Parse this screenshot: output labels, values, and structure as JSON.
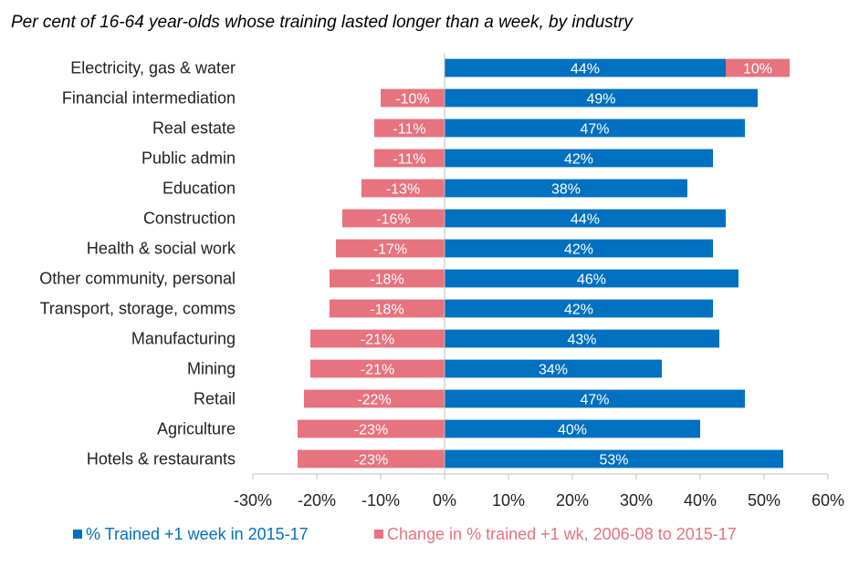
{
  "chart_data": {
    "type": "bar",
    "orientation": "horizontal",
    "title": "Per cent of 16-64  year-olds whose training lasted longer than a week, by industry",
    "categories": [
      "Electricity, gas & water",
      "Financial intermediation",
      "Real estate",
      "Public admin",
      "Education",
      "Construction",
      "Health & social work",
      "Other community, personal",
      "Transport, storage, comms",
      "Manufacturing",
      "Mining",
      "Retail",
      "Agriculture",
      "Hotels & restaurants"
    ],
    "series": [
      {
        "name": "% Trained +1 week in 2015-17",
        "color": "#0070C0",
        "values": [
          44,
          49,
          47,
          42,
          38,
          44,
          42,
          46,
          42,
          43,
          34,
          47,
          40,
          53
        ],
        "labels": [
          "44%",
          "49%",
          "47%",
          "42%",
          "38%",
          "44%",
          "42%",
          "46%",
          "42%",
          "43%",
          "34%",
          "47%",
          "40%",
          "53%"
        ]
      },
      {
        "name": "Change in % trained +1 wk, 2006-08 to 2015-17",
        "color": "#E6737E",
        "values": [
          10,
          -10,
          -11,
          -11,
          -13,
          -16,
          -17,
          -18,
          -18,
          -21,
          -21,
          -22,
          -23,
          -23
        ],
        "labels": [
          "10%",
          "-10%",
          "-11%",
          "-11%",
          "-13%",
          "-16%",
          "-17%",
          "-18%",
          "-18%",
          "-21%",
          "-21%",
          "-22%",
          "-23%",
          "-23%"
        ]
      }
    ],
    "xlim": [
      -30,
      60
    ],
    "xticks": [
      -30,
      -20,
      -10,
      0,
      10,
      20,
      30,
      40,
      50,
      60
    ],
    "xtick_labels": [
      "-30%",
      "-20%",
      "-10%",
      "0%",
      "10%",
      "20%",
      "30%",
      "40%",
      "50%",
      "60%"
    ],
    "grid": false,
    "legend_position": "bottom"
  }
}
